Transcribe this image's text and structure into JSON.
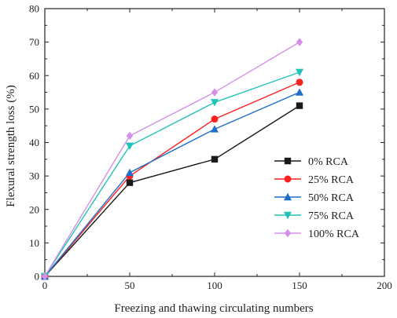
{
  "chart_data": {
    "type": "line",
    "title": "",
    "xlabel": "Freezing and thawing circulating numbers",
    "ylabel": "Flexural strength loss (%)",
    "xlim": [
      0,
      200
    ],
    "ylim": [
      0,
      80
    ],
    "xticks": [
      0,
      50,
      100,
      150,
      200
    ],
    "yticks": [
      0,
      10,
      20,
      30,
      40,
      50,
      60,
      70,
      80
    ],
    "grid": false,
    "legend_position": "bottom-right",
    "x": [
      0,
      50,
      100,
      150
    ],
    "series": [
      {
        "name": "0% RCA",
        "values": [
          0,
          28,
          35,
          51
        ],
        "color": "#1a1a1a",
        "marker": "square"
      },
      {
        "name": "25% RCA",
        "values": [
          0,
          30,
          47,
          58
        ],
        "color": "#ff2020",
        "marker": "circle"
      },
      {
        "name": "50% RCA",
        "values": [
          0,
          31,
          44,
          55
        ],
        "color": "#1f6fc9",
        "marker": "triangle-up"
      },
      {
        "name": "75% RCA",
        "values": [
          0,
          39,
          52,
          61
        ],
        "color": "#1fc4b8",
        "marker": "triangle-down"
      },
      {
        "name": "100% RCA",
        "values": [
          0,
          42,
          55,
          70
        ],
        "color": "#d58fe9",
        "marker": "diamond"
      }
    ]
  }
}
